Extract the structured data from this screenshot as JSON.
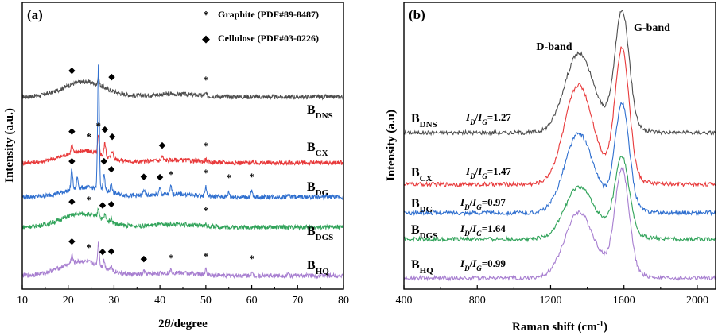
{
  "chart_data": [
    {
      "type": "line",
      "panel_label": "(a)",
      "xlabel_parts": [
        "2",
        "θ",
        "/degree"
      ],
      "ylabel": "Intensity (a.u.)",
      "xlim": [
        10,
        80
      ],
      "xticks": [
        10,
        20,
        30,
        40,
        50,
        60,
        70,
        80
      ],
      "yticks": "none",
      "legend": [
        {
          "marker": "*",
          "label": "Graphite (PDF#89-8487)"
        },
        {
          "marker": "◆",
          "label": "Cellulose (PDF#03-0226)"
        }
      ],
      "legend_position": "top-right",
      "series": [
        {
          "name": "B",
          "sub": "DNS",
          "color": "#4d4d4d",
          "amorphous_hump": {
            "center": 23.5,
            "height": 0.95
          },
          "peaks": [
            {
              "x": 26.6,
              "height": 0.45
            },
            {
              "x": 50.0,
              "height": 0.15
            }
          ],
          "phase_markers": [
            {
              "x": 20.8,
              "marker": "◆"
            },
            {
              "x": 29.5,
              "marker": "◆"
            },
            {
              "x": 50.0,
              "marker": "*"
            }
          ]
        },
        {
          "name": "B",
          "sub": "CX",
          "color": "#e8393a",
          "amorphous_hump": {
            "center": 23.5,
            "height": 0.75
          },
          "peaks": [
            {
              "x": 20.8,
              "height": 0.5
            },
            {
              "x": 26.6,
              "height": 1.1
            },
            {
              "x": 28.0,
              "height": 0.8
            },
            {
              "x": 29.6,
              "height": 0.5
            },
            {
              "x": 40.5,
              "height": 0.25
            },
            {
              "x": 50.0,
              "height": 0.15
            }
          ],
          "phase_markers": [
            {
              "x": 20.8,
              "marker": "◆"
            },
            {
              "x": 24.5,
              "marker": "*"
            },
            {
              "x": 26.6,
              "marker": "*"
            },
            {
              "x": 28.0,
              "marker": "◆"
            },
            {
              "x": 29.6,
              "marker": "◆"
            },
            {
              "x": 40.5,
              "marker": "◆"
            },
            {
              "x": 50.0,
              "marker": "*"
            }
          ]
        },
        {
          "name": "B",
          "sub": "DG",
          "color": "#2f6fcf",
          "amorphous_hump": {
            "center": 24.0,
            "height": 0.6
          },
          "peaks": [
            {
              "x": 20.8,
              "height": 1.3
            },
            {
              "x": 22.0,
              "height": 0.7
            },
            {
              "x": 26.6,
              "height": 8.0
            },
            {
              "x": 27.8,
              "height": 1.1
            },
            {
              "x": 29.4,
              "height": 0.6
            },
            {
              "x": 36.5,
              "height": 0.4
            },
            {
              "x": 40.0,
              "height": 0.4
            },
            {
              "x": 42.4,
              "height": 0.5
            },
            {
              "x": 50.0,
              "height": 0.6
            },
            {
              "x": 55.0,
              "height": 0.3
            },
            {
              "x": 60.0,
              "height": 0.35
            },
            {
              "x": 68.0,
              "height": 0.2
            }
          ],
          "phase_markers": [
            {
              "x": 20.8,
              "marker": "◆"
            },
            {
              "x": 27.8,
              "marker": "◆"
            },
            {
              "x": 29.4,
              "marker": "◆"
            },
            {
              "x": 36.5,
              "marker": "◆"
            },
            {
              "x": 40.0,
              "marker": "◆"
            },
            {
              "x": 42.4,
              "marker": "*"
            },
            {
              "x": 50.0,
              "marker": "*"
            },
            {
              "x": 55.0,
              "marker": "*"
            },
            {
              "x": 60.0,
              "marker": "*"
            }
          ]
        },
        {
          "name": "B",
          "sub": "DGS",
          "color": "#31a35a",
          "amorphous_hump": {
            "center": 23.0,
            "height": 0.85
          },
          "peaks": [
            {
              "x": 26.6,
              "height": 0.6
            },
            {
              "x": 28.0,
              "height": 0.35
            },
            {
              "x": 29.4,
              "height": 0.3
            },
            {
              "x": 50.0,
              "height": 0.12
            }
          ],
          "phase_markers": [
            {
              "x": 20.8,
              "marker": "◆"
            },
            {
              "x": 24.5,
              "marker": "*"
            },
            {
              "x": 27.5,
              "marker": "◆"
            },
            {
              "x": 29.4,
              "marker": "◆"
            },
            {
              "x": 50.0,
              "marker": "*"
            }
          ]
        },
        {
          "name": "B",
          "sub": "HQ",
          "color": "#a77ed0",
          "amorphous_hump": {
            "center": 23.0,
            "height": 0.9
          },
          "peaks": [
            {
              "x": 20.8,
              "height": 0.5
            },
            {
              "x": 26.6,
              "height": 1.4
            },
            {
              "x": 27.8,
              "height": 0.45
            },
            {
              "x": 29.4,
              "height": 0.35
            },
            {
              "x": 36.5,
              "height": 0.2
            },
            {
              "x": 42.4,
              "height": 0.2
            },
            {
              "x": 50.0,
              "height": 0.3
            },
            {
              "x": 60.0,
              "height": 0.15
            },
            {
              "x": 68.0,
              "height": 0.12
            }
          ],
          "phase_markers": [
            {
              "x": 20.8,
              "marker": "◆"
            },
            {
              "x": 24.5,
              "marker": "*"
            },
            {
              "x": 27.5,
              "marker": "◆"
            },
            {
              "x": 29.4,
              "marker": "◆"
            },
            {
              "x": 36.5,
              "marker": "◆"
            },
            {
              "x": 42.4,
              "marker": "*"
            },
            {
              "x": 50.0,
              "marker": "*"
            },
            {
              "x": 60.0,
              "marker": "*"
            }
          ]
        }
      ]
    },
    {
      "type": "line",
      "panel_label": "(b)",
      "xlabel": "Raman shift (cm",
      "xlabel_sup": "-1",
      "xlabel_end": ")",
      "ylabel": "Intensity (a.u)",
      "xlim": [
        400,
        2100
      ],
      "xticks": [
        400,
        800,
        1200,
        1600,
        2000
      ],
      "yticks": "none",
      "band_labels": [
        {
          "text": "D-band",
          "x": 1350
        },
        {
          "text": "G-band",
          "x": 1590
        }
      ],
      "series": [
        {
          "name": "B",
          "sub": "DNS",
          "color": "#4d4d4d",
          "ratio_label": "I",
          "ratio_value": "=1.27",
          "D_height": 0.55,
          "G_height": 0.85
        },
        {
          "name": "B",
          "sub": "CX",
          "color": "#e8393a",
          "ratio_label": "I",
          "ratio_value": "=1.47",
          "D_height": 0.7,
          "G_height": 0.95
        },
        {
          "name": "B",
          "sub": "DG",
          "color": "#2f6fcf",
          "ratio_label": "I",
          "ratio_value": "=0.97",
          "D_height": 0.55,
          "G_height": 0.75
        },
        {
          "name": "B",
          "sub": "DGS",
          "color": "#31a35a",
          "ratio_label": "I",
          "ratio_value": "=1.64",
          "D_height": 0.35,
          "G_height": 0.55
        },
        {
          "name": "B",
          "sub": "HQ",
          "color": "#a77ed0",
          "ratio_label": "I",
          "ratio_value": "=0.99",
          "D_height": 0.45,
          "G_height": 0.75
        }
      ]
    }
  ]
}
